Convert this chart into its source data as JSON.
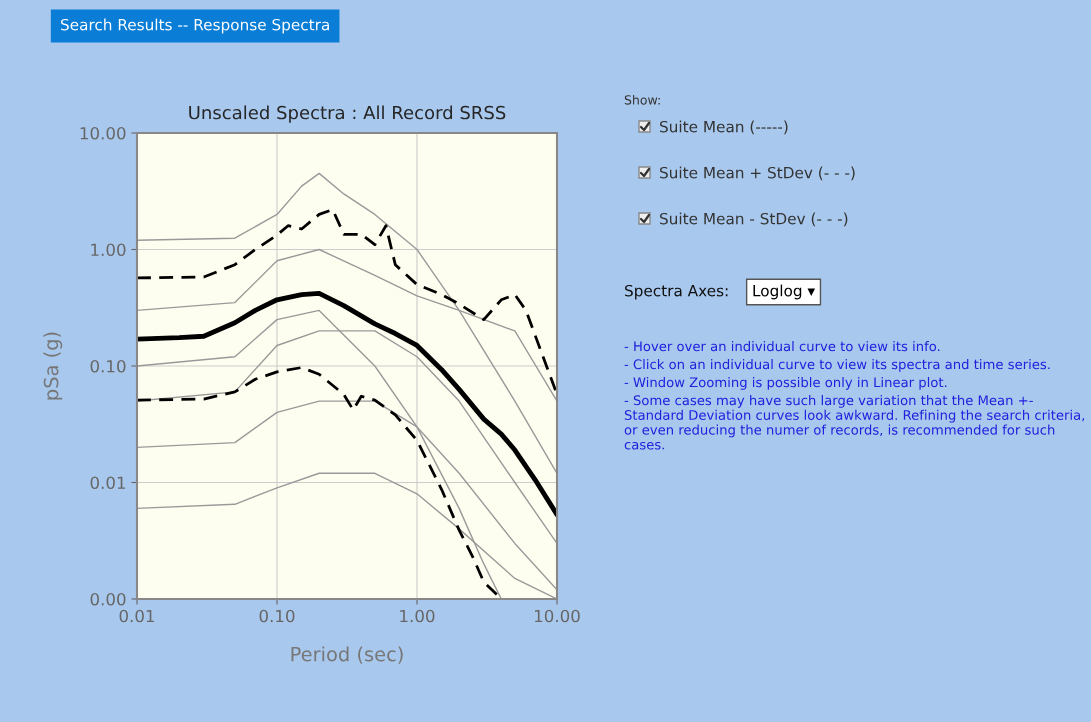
{
  "chart_data": {
    "type": "line",
    "title": "Unscaled Spectra : All Record SRSS",
    "xlabel": "Period (sec)",
    "ylabel": "pSa (g)",
    "log": "xy",
    "grid": true,
    "legend": false,
    "xlim": [
      0.01,
      10
    ],
    "xticks": [
      {
        "value": 0.01,
        "label": "0.01"
      },
      {
        "value": 0.1,
        "label": "0.10"
      },
      {
        "value": 1,
        "label": "1.00"
      },
      {
        "value": 10,
        "label": "10.00"
      }
    ],
    "ylim": [
      0.001,
      10
    ],
    "yticks": [
      {
        "value": 0.001,
        "label": "0.00"
      },
      {
        "value": 0.01,
        "label": "0.01"
      },
      {
        "value": 0.1,
        "label": "0.10"
      },
      {
        "value": 1,
        "label": "1.00"
      },
      {
        "value": 10,
        "label": "10.00"
      }
    ],
    "series": [
      {
        "color": "#999999",
        "line_style": "solid",
        "x": [
          0.01,
          0.05,
          0.1,
          0.15,
          0.2,
          0.3,
          0.5,
          1,
          2,
          5,
          10
        ],
        "values": [
          1.2,
          1.25,
          2.0,
          3.5,
          4.5,
          3.0,
          2.0,
          1.0,
          0.3,
          0.05,
          0.012
        ]
      },
      {
        "color": "#999999",
        "line_style": "solid",
        "x": [
          0.01,
          0.05,
          0.1,
          0.2,
          0.5,
          1,
          2,
          5,
          10
        ],
        "values": [
          0.006,
          0.0065,
          0.009,
          0.012,
          0.012,
          0.008,
          0.004,
          0.0015,
          0.001
        ]
      },
      {
        "color": "#999999",
        "line_style": "solid",
        "x": [
          0.01,
          0.05,
          0.1,
          0.2,
          0.5,
          1,
          2,
          5,
          10
        ],
        "values": [
          0.3,
          0.35,
          0.8,
          1.0,
          0.6,
          0.4,
          0.3,
          0.2,
          0.05
        ]
      },
      {
        "color": "#999999",
        "line_style": "solid",
        "x": [
          0.01,
          0.05,
          0.1,
          0.2,
          0.5,
          1,
          2,
          3,
          4
        ],
        "values": [
          0.1,
          0.12,
          0.25,
          0.3,
          0.1,
          0.03,
          0.006,
          0.002,
          0.001
        ]
      },
      {
        "color": "#999999",
        "line_style": "solid",
        "x": [
          0.01,
          0.05,
          0.1,
          0.2,
          0.5,
          1,
          2,
          5,
          10
        ],
        "values": [
          0.02,
          0.022,
          0.04,
          0.05,
          0.05,
          0.03,
          0.012,
          0.003,
          0.0012
        ]
      },
      {
        "color": "#999999",
        "line_style": "solid",
        "x": [
          0.01,
          0.05,
          0.1,
          0.2,
          0.5,
          1,
          2,
          5,
          10
        ],
        "values": [
          0.05,
          0.06,
          0.15,
          0.2,
          0.2,
          0.12,
          0.05,
          0.01,
          0.003
        ]
      },
      {
        "color": "#000000",
        "line_style": "dashed",
        "x": [
          0.01,
          0.03,
          0.05,
          0.07,
          0.1,
          0.12,
          0.15,
          0.2,
          0.25,
          0.3,
          0.4,
          0.5,
          0.6,
          0.7,
          1,
          1.5,
          2,
          3,
          4,
          5,
          6,
          10
        ],
        "values": [
          0.57,
          0.58,
          0.74,
          1.0,
          1.33,
          1.6,
          1.5,
          2.0,
          2.2,
          1.35,
          1.35,
          1.1,
          1.6,
          0.74,
          0.5,
          0.41,
          0.34,
          0.25,
          0.37,
          0.41,
          0.3,
          0.057
        ]
      },
      {
        "color": "#000000",
        "line_style": "dashed",
        "x": [
          0.01,
          0.03,
          0.05,
          0.07,
          0.1,
          0.15,
          0.2,
          0.3,
          0.35,
          0.4,
          0.5,
          0.7,
          1,
          1.5,
          2,
          2.5,
          3,
          4
        ],
        "values": [
          0.051,
          0.052,
          0.06,
          0.077,
          0.089,
          0.097,
          0.085,
          0.057,
          0.042,
          0.055,
          0.051,
          0.038,
          0.023,
          0.0087,
          0.0039,
          0.0023,
          0.0014,
          0.001
        ]
      },
      {
        "color": "#000000",
        "line_style": "solid",
        "x": [
          0.01,
          0.02,
          0.03,
          0.05,
          0.07,
          0.1,
          0.15,
          0.2,
          0.3,
          0.5,
          0.7,
          1,
          1.5,
          2,
          3,
          4,
          5,
          7,
          10
        ],
        "values": [
          0.17,
          0.175,
          0.18,
          0.235,
          0.3,
          0.37,
          0.41,
          0.42,
          0.33,
          0.23,
          0.19,
          0.15,
          0.093,
          0.063,
          0.035,
          0.026,
          0.019,
          0.0105,
          0.0053
        ]
      }
    ],
    "annotations": [
      "Search Results -- Response Spectra",
      "Show:",
      "Suite Mean (-----)",
      "Suite Mean + StDev (- - -)",
      "Suite Mean - StDev (- - -)",
      "Spectra Axes:",
      "Loglog ▾",
      "- Hover over an individual curve to view its info.",
      "- Click on an individual curve to view its spectra and time series.",
      "- Window Zooming is possible only in Linear plot.",
      "- Some cases may have such large variation that the Mean +- Standard Deviation curves look awkward. Refining the search criteria, or even reducing the numer of records, is recommended for such cases."
    ]
  }
}
